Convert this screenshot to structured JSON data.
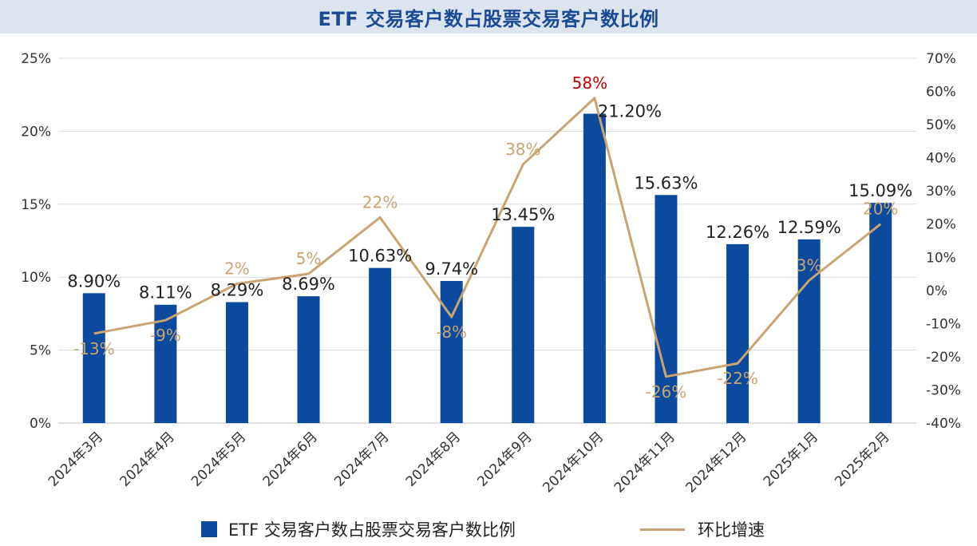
{
  "chart_data": {
    "type": "bar",
    "title": "ETF 交易客户数占股票交易客户数比例",
    "categories": [
      "2024年3月",
      "2024年4月",
      "2024年5月",
      "2024年6月",
      "2024年7月",
      "2024年8月",
      "2024年9月",
      "2024年10月",
      "2024年11月",
      "2024年12月",
      "2025年1月",
      "2025年2月"
    ],
    "series": [
      {
        "name": "ETF 交易客户数占股票交易客户数比例",
        "type": "bar",
        "axis": "left",
        "values": [
          8.9,
          8.11,
          8.29,
          8.69,
          10.63,
          9.74,
          13.45,
          21.2,
          15.63,
          12.26,
          12.59,
          15.09
        ],
        "labels": [
          "8.90%",
          "8.11%",
          "8.29%",
          "8.69%",
          "10.63%",
          "9.74%",
          "13.45%",
          "21.20%",
          "15.63%",
          "12.26%",
          "12.59%",
          "15.09%"
        ],
        "color": "#0b4a9c"
      },
      {
        "name": "环比增速",
        "type": "line",
        "axis": "right",
        "values": [
          -13,
          -9,
          2,
          5,
          22,
          -8,
          38,
          58,
          -26,
          -22,
          3,
          20
        ],
        "labels": [
          "-13%",
          "-9%",
          "2%",
          "5%",
          "22%",
          "-8%",
          "38%",
          "58%",
          "-26%",
          "-22%",
          "3%",
          "20%"
        ],
        "color": "#c9a472"
      }
    ],
    "y_left": {
      "range": [
        0,
        25
      ],
      "ticks": [
        "0%",
        "5%",
        "10%",
        "15%",
        "20%",
        "25%"
      ]
    },
    "y_right": {
      "range": [
        -40,
        70
      ],
      "ticks": [
        "-40%",
        "-30%",
        "-20%",
        "-10%",
        "0%",
        "10%",
        "20%",
        "30%",
        "40%",
        "50%",
        "60%",
        "70%"
      ]
    },
    "highlight_color": "#c00000",
    "highlight_indices": [
      7
    ],
    "grid": true,
    "legend_position": "bottom"
  }
}
